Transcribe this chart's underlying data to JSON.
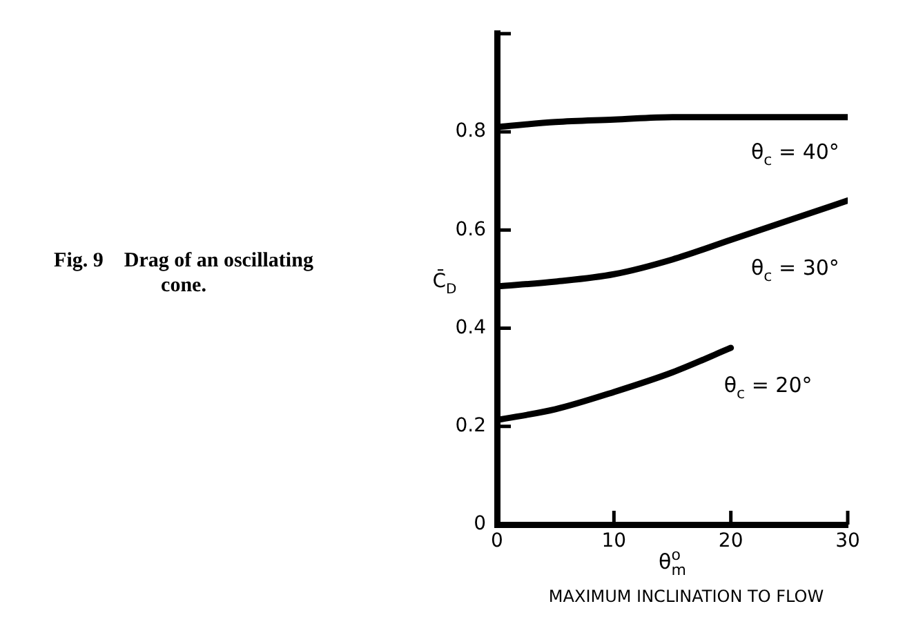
{
  "chart_data": {
    "type": "line",
    "title": "Fig. 9    Drag of an oscillating cone.",
    "xlabel": "θ$^{o}$$_{m}$",
    "ylabel": "C̄$_{D}$",
    "annotations": [
      "MAXIMUM INCLINATION TO FLOW"
    ],
    "x": [
      0,
      5,
      10,
      15,
      20,
      25,
      30
    ],
    "series": [
      {
        "name": "θ$_{c}$ = 40°",
        "color": "#000000",
        "values": [
          0.81,
          0.82,
          0.825,
          0.83,
          0.83,
          0.83,
          0.83
        ]
      },
      {
        "name": "θ$_{c}$ = 30°",
        "color": "#000000",
        "values": [
          0.485,
          0.495,
          0.51,
          0.54,
          0.58,
          0.62,
          0.66
        ]
      },
      {
        "name": "θ$_{c}$ = 20°",
        "color": "#000000",
        "values": [
          0.213,
          0.235,
          0.27,
          0.31,
          0.36,
          null,
          null
        ]
      }
    ],
    "xlim": [
      0,
      30
    ],
    "xticks": [
      0,
      10,
      20,
      30
    ],
    "ylim": [
      0,
      1
    ],
    "yticks": [
      0,
      0.2,
      0.4,
      0.6,
      0.8,
      {
        "value": 1,
        "label": null
      }
    ],
    "grid": false,
    "legend": false,
    "marker": "none",
    "line_style": "solid"
  }
}
